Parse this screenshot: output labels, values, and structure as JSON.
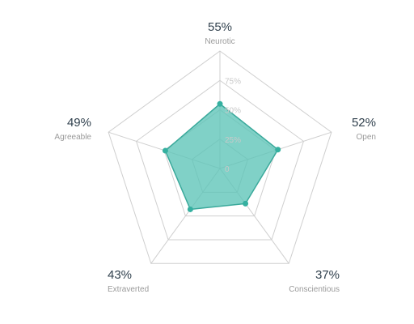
{
  "chart_data": {
    "type": "radar",
    "axes": [
      {
        "name": "Neurotic",
        "value_label": "55%"
      },
      {
        "name": "Open",
        "value_label": "52%"
      },
      {
        "name": "Conscientious",
        "value_label": "37%"
      },
      {
        "name": "Extraverted",
        "value_label": "43%"
      },
      {
        "name": "Agreeable",
        "value_label": "49%"
      }
    ],
    "series": [
      {
        "values": [
          55,
          52,
          37,
          43,
          49
        ]
      }
    ],
    "range": [
      0,
      100
    ],
    "tick_labels": [
      "0",
      "25%",
      "50%",
      "75%"
    ],
    "tick_values": [
      0,
      25,
      50,
      75
    ],
    "grid": true,
    "colors": {
      "fill": "#5cc4b7",
      "stroke": "#3aa99b",
      "point": "#35b0a0",
      "grid": "#cfcfcf"
    }
  }
}
